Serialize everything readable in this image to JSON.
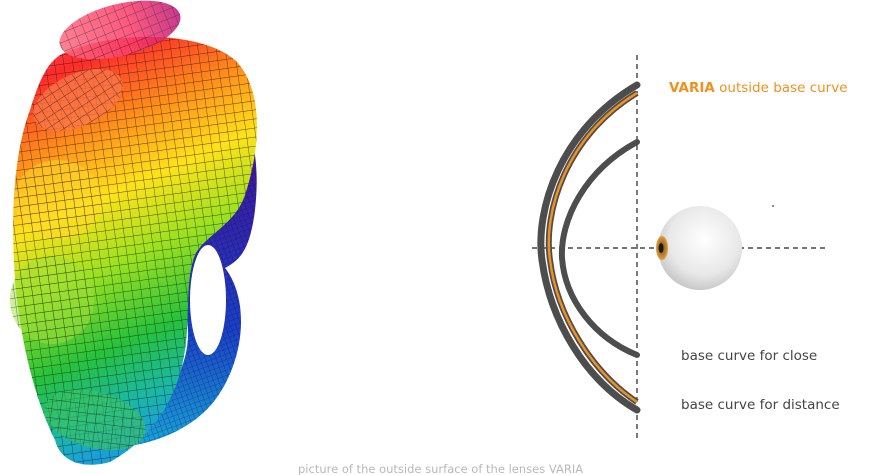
{
  "labels": {
    "varia_brand": "VARIA",
    "varia_rest": "outside base curve",
    "close": "base curve for close",
    "distance": "base curve for distance",
    "caption": "picture of the outside surface of the lenses VARIA"
  },
  "colors": {
    "accent": "#f0901e",
    "curve_gray": "#4d4d4d",
    "label_gray": "#444444",
    "caption_gray": "#b9b9b9",
    "pupil": "#1a1a1a",
    "iris": "#c98a3a"
  },
  "icons": {
    "surface": "lens-surface-3d",
    "eye": "eyeball-icon"
  }
}
